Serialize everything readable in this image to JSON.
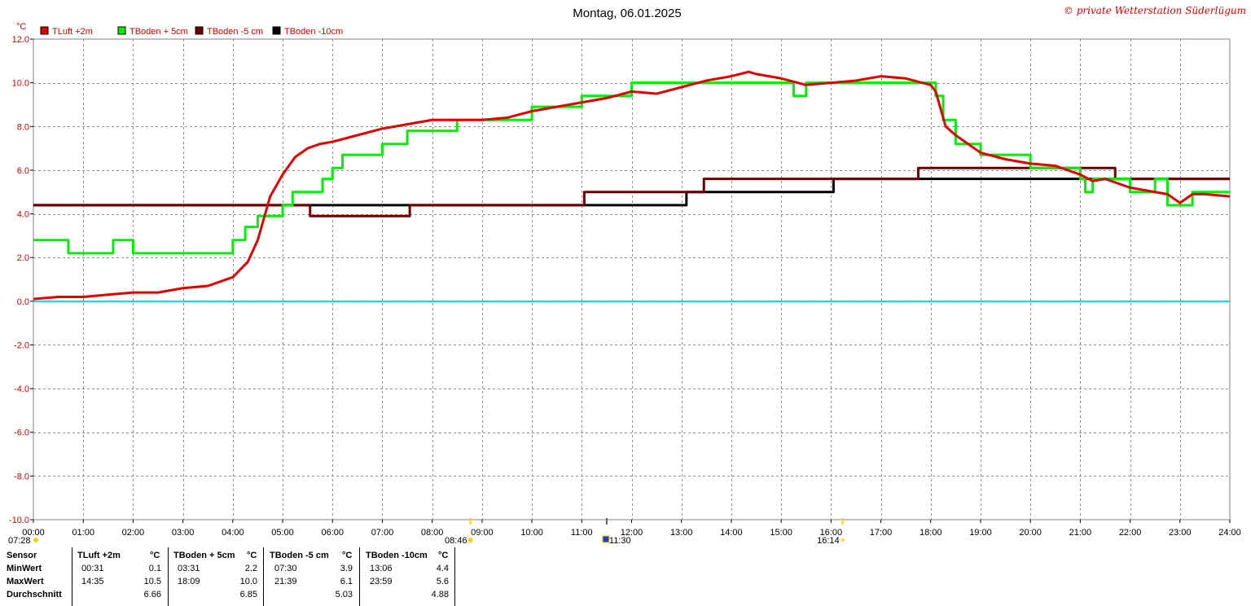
{
  "title": "Montag, 06.01.2025",
  "copyright": "© private Wetterstation Süderlügum",
  "colors": {
    "tluft": "#e00000",
    "tb5": "#00ee00",
    "tbm5": "#700000",
    "tbm10": "#000000",
    "zero": "#00e0e0",
    "text_red": "#cc0000"
  },
  "legend": [
    {
      "name": "TLuft +2m",
      "color": "#e00000"
    },
    {
      "name": "TBoden + 5cm",
      "color": "#00ee00"
    },
    {
      "name": "TBoden -5 cm",
      "color": "#700000"
    },
    {
      "name": "TBoden -10cm",
      "color": "#000000"
    }
  ],
  "chart_data": {
    "type": "line",
    "title": "Montag, 06.01.2025",
    "ylabel": "°C",
    "ylim": [
      -10,
      12
    ],
    "xlim": [
      0,
      24
    ],
    "yticks": [
      "12.0",
      "10.0",
      "8.0",
      "6.0",
      "4.0",
      "2.0",
      "0.0",
      "-2.0",
      "-4.0",
      "-6.0",
      "-8.0",
      "-10.0"
    ],
    "xticks": [
      "00:00",
      "01:00",
      "02:00",
      "03:00",
      "04:00",
      "05:00",
      "06:00",
      "07:00",
      "08:00",
      "09:00",
      "10:00",
      "11:00",
      "12:00",
      "13:00",
      "14:00",
      "15:00",
      "16:00",
      "17:00",
      "18:00",
      "19:00",
      "20:00",
      "21:00",
      "22:00",
      "23:00",
      "24:00"
    ],
    "grid": true,
    "legend_position": "top-left",
    "series": [
      {
        "name": "TLuft +2m",
        "x": [
          0,
          0.5,
          1,
          1.5,
          2,
          2.5,
          3,
          3.5,
          4,
          4.3,
          4.5,
          4.75,
          5,
          5.25,
          5.5,
          5.75,
          6,
          6.5,
          7,
          7.5,
          8,
          8.5,
          9,
          9.5,
          10,
          10.5,
          11,
          11.5,
          12,
          12.5,
          13,
          13.5,
          14,
          14.35,
          14.5,
          15,
          15.5,
          16,
          16.5,
          17,
          17.5,
          18,
          18.1,
          18.3,
          18.5,
          18.75,
          19,
          19.5,
          20,
          20.5,
          21,
          21.25,
          21.5,
          22,
          22.5,
          22.75,
          23,
          23.25,
          23.5,
          24
        ],
        "values": [
          0.1,
          0.2,
          0.2,
          0.3,
          0.4,
          0.4,
          0.6,
          0.7,
          1.1,
          1.8,
          2.8,
          4.8,
          5.8,
          6.6,
          7.0,
          7.2,
          7.3,
          7.6,
          7.9,
          8.1,
          8.3,
          8.3,
          8.3,
          8.4,
          8.7,
          8.9,
          9.1,
          9.3,
          9.6,
          9.5,
          9.8,
          10.1,
          10.3,
          10.5,
          10.4,
          10.2,
          9.9,
          10.0,
          10.1,
          10.3,
          10.2,
          9.9,
          9.6,
          8.0,
          7.6,
          7.2,
          6.8,
          6.5,
          6.3,
          6.2,
          5.8,
          5.5,
          5.6,
          5.2,
          5.0,
          4.9,
          4.5,
          4.9,
          4.9,
          4.8
        ]
      },
      {
        "name": "TBoden + 5cm",
        "x": [
          0,
          0.5,
          0.7,
          1,
          1.6,
          2,
          2.5,
          3,
          3.5,
          4,
          4.25,
          4.5,
          4.8,
          5,
          5.2,
          5.5,
          5.8,
          6,
          6.2,
          6.5,
          7,
          7.5,
          8,
          8.5,
          9,
          9.5,
          10,
          10.5,
          11,
          11.5,
          12,
          12.5,
          13,
          13.5,
          14,
          14.5,
          15,
          15.25,
          15.5,
          16,
          16.5,
          17,
          17.5,
          18,
          18.1,
          18.25,
          18.5,
          18.75,
          19,
          19.5,
          20,
          20.5,
          21,
          21.1,
          21.25,
          21.5,
          21.75,
          22,
          22.5,
          22.75,
          23,
          23.25,
          23.5,
          24
        ],
        "values": [
          2.8,
          2.8,
          2.2,
          2.2,
          2.8,
          2.2,
          2.2,
          2.2,
          2.2,
          2.8,
          3.4,
          3.9,
          3.9,
          4.4,
          5.0,
          5.0,
          5.6,
          6.1,
          6.7,
          6.7,
          7.2,
          7.8,
          7.8,
          8.3,
          8.3,
          8.3,
          8.9,
          8.9,
          9.4,
          9.4,
          10.0,
          10.0,
          10.0,
          10.0,
          10.0,
          10.0,
          10.0,
          9.4,
          10.0,
          10.0,
          10.0,
          10.0,
          10.0,
          10.0,
          9.4,
          8.3,
          7.2,
          7.2,
          6.7,
          6.7,
          6.1,
          6.1,
          5.6,
          5.0,
          5.6,
          5.6,
          5.6,
          5.0,
          5.6,
          4.4,
          4.4,
          5.0,
          5.0,
          5.0
        ]
      },
      {
        "name": "TBoden -5 cm",
        "x": [
          0,
          5.5,
          5.55,
          7.5,
          7.55,
          11,
          11.05,
          13.4,
          13.45,
          17.7,
          17.75,
          21.65,
          21.7,
          24
        ],
        "values": [
          4.4,
          4.4,
          3.9,
          3.9,
          4.4,
          4.4,
          5.0,
          5.0,
          5.6,
          5.6,
          6.1,
          6.1,
          5.6,
          5.6
        ]
      },
      {
        "name": "TBoden -10cm",
        "x": [
          0,
          13.05,
          13.1,
          16.0,
          16.05,
          24
        ],
        "values": [
          4.4,
          4.4,
          5.0,
          5.0,
          5.6,
          5.6
        ]
      }
    ]
  },
  "sun": {
    "sunrise": "08:46",
    "noon": "11:30",
    "sunset": "16:14",
    "prev": "07:28"
  },
  "table": {
    "headers": [
      "Sensor",
      "TLuft +2m",
      "°C",
      "TBoden + 5cm",
      "°C",
      "TBoden -5 cm",
      "°C",
      "TBoden -10cm",
      "°C"
    ],
    "rows": [
      {
        "label": "MinWert",
        "v": [
          "00:31",
          "0.1",
          "03:31",
          "2.2",
          "07:30",
          "3.9",
          "13:06",
          "4.4"
        ]
      },
      {
        "label": "MaxWert",
        "v": [
          "14:35",
          "10.5",
          "18:09",
          "10.0",
          "21:39",
          "6.1",
          "23:59",
          "5.6"
        ]
      },
      {
        "label": "Durchschnitt",
        "v": [
          "",
          "6.66",
          "",
          "6.85",
          "",
          "5.03",
          "",
          "4.88"
        ]
      }
    ]
  }
}
